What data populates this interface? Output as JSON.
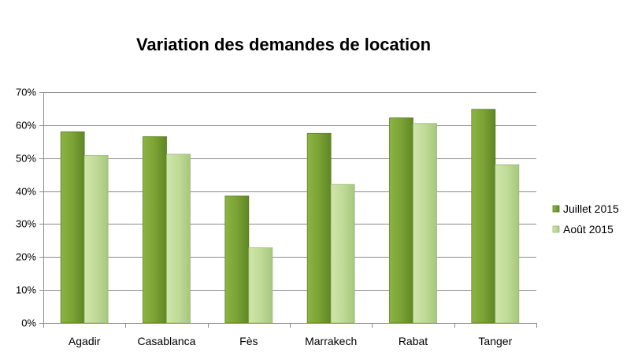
{
  "chart_data": {
    "type": "bar",
    "title": "Variation des demandes de location",
    "categories": [
      "Agadir",
      "Casablanca",
      "Fès",
      "Marrakech",
      "Rabat",
      "Tanger"
    ],
    "series": [
      {
        "name": "Juillet 2015",
        "values": [
          58,
          56.5,
          38.5,
          57.5,
          62.2,
          64.8
        ],
        "color": "#7ea638"
      },
      {
        "name": "Août 2015",
        "values": [
          50.8,
          51.2,
          22.8,
          42,
          60.5,
          48
        ],
        "color": "#c2dd99"
      }
    ],
    "y_ticks": [
      "0%",
      "10%",
      "20%",
      "30%",
      "40%",
      "50%",
      "60%",
      "70%"
    ],
    "ylim": [
      0,
      70
    ],
    "y_unit": "%",
    "grid": true,
    "legend_position": "right"
  }
}
